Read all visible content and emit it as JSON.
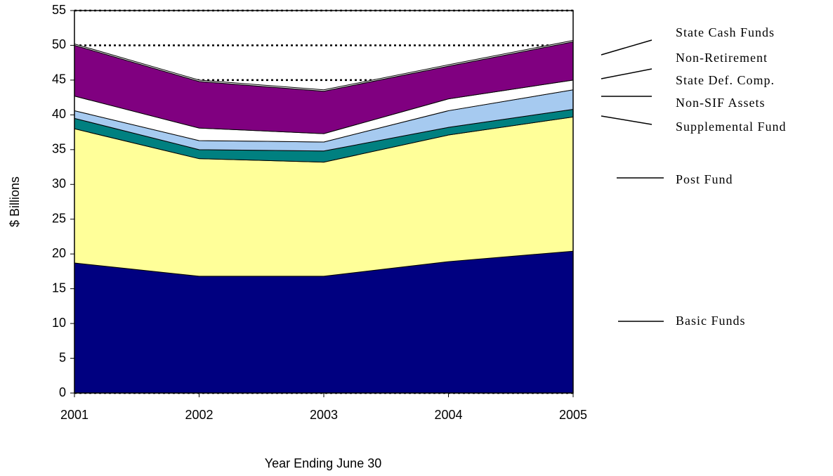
{
  "chart_data": {
    "type": "stacked_area",
    "x_label": "Year Ending June 30",
    "y_label": "$ Billions",
    "categories": [
      "2001",
      "2002",
      "2003",
      "2004",
      "2005"
    ],
    "ylim": [
      0,
      55
    ],
    "yticks": [
      0,
      5,
      10,
      15,
      20,
      25,
      30,
      35,
      40,
      45,
      50,
      55
    ],
    "grid": true,
    "series": [
      {
        "name": "Basic Funds",
        "color": "#000080",
        "values": [
          18.7,
          16.8,
          16.8,
          18.9,
          20.4
        ]
      },
      {
        "name": "Post Fund",
        "color": "#ffff99",
        "values": [
          19.3,
          16.9,
          16.4,
          18.2,
          19.3
        ]
      },
      {
        "name": "Supplemental Fund",
        "color": "#008080",
        "values": [
          1.5,
          1.3,
          1.6,
          1.1,
          1.1
        ]
      },
      {
        "name": "Non-SIF Assets",
        "color": "#a6caf0",
        "values": [
          1.1,
          1.3,
          1.3,
          2.4,
          2.8
        ]
      },
      {
        "name": "State Def. Comp.",
        "color": "#ffffff",
        "values": [
          2.1,
          1.8,
          1.2,
          1.7,
          1.4
        ]
      },
      {
        "name": "Non-Retirement",
        "color": "#800080",
        "values": [
          7.3,
          6.7,
          6.1,
          4.7,
          5.5
        ]
      },
      {
        "name": "State Cash Funds",
        "color": "#ffffff",
        "values": [
          0.2,
          0.2,
          0.2,
          0.2,
          0.2
        ]
      }
    ]
  }
}
